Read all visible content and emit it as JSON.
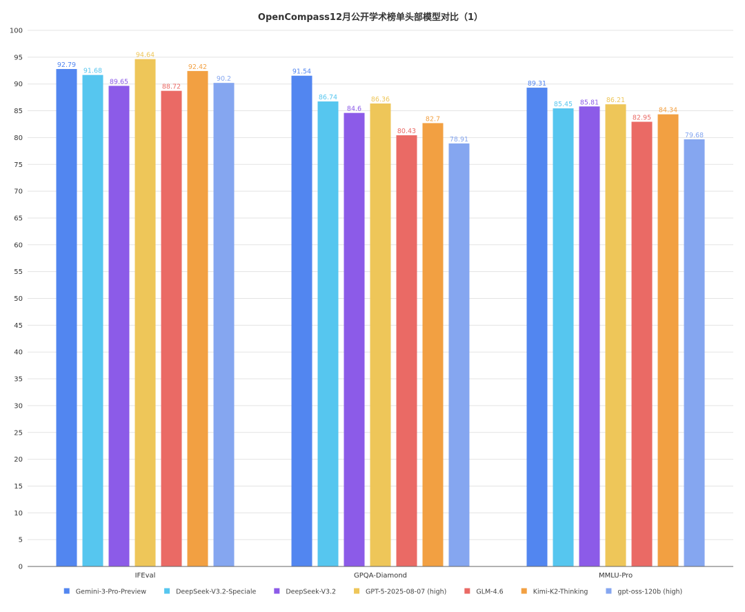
{
  "chart_data": {
    "type": "bar",
    "title": "OpenCompass12月公开学术榜单头部模型对比（1）",
    "xlabel": "",
    "ylabel": "",
    "ylim": [
      0,
      100
    ],
    "ytick_step": 5,
    "y_ticks": [
      "0",
      "5",
      "10",
      "15",
      "20",
      "25",
      "30",
      "35",
      "40",
      "45",
      "50",
      "55",
      "60",
      "65",
      "70",
      "75",
      "80",
      "85",
      "90",
      "95",
      "100"
    ],
    "grid": true,
    "legend_position": "bottom",
    "categories": [
      "IFEval",
      "GPQA-Diamond",
      "MMLU-Pro"
    ],
    "series": [
      {
        "name": "Gemini-3-Pro-Preview",
        "color": "#5286f0",
        "values": [
          92.79,
          91.54,
          89.31
        ],
        "labels": [
          "92.79",
          "91.54",
          "89.31"
        ]
      },
      {
        "name": "DeepSeek-V3.2-Speciale",
        "color": "#56c6ef",
        "values": [
          91.68,
          86.74,
          85.45
        ],
        "labels": [
          "91.68",
          "86.74",
          "85.45"
        ]
      },
      {
        "name": "DeepSeek-V3.2",
        "color": "#8c5be8",
        "values": [
          89.65,
          84.6,
          85.81
        ],
        "labels": [
          "89.65",
          "84.6",
          "85.81"
        ]
      },
      {
        "name": "GPT-5-2025-08-07 (high)",
        "color": "#eec659",
        "values": [
          94.64,
          86.36,
          86.21
        ],
        "labels": [
          "94.64",
          "86.36",
          "86.21"
        ]
      },
      {
        "name": "GLM-4.6",
        "color": "#ea6a65",
        "values": [
          88.72,
          80.43,
          82.95
        ],
        "labels": [
          "88.72",
          "80.43",
          "82.95"
        ]
      },
      {
        "name": "Kimi-K2-Thinking",
        "color": "#f2a042",
        "values": [
          92.42,
          82.7,
          84.34
        ],
        "labels": [
          "92.42",
          "82.7",
          "84.34"
        ]
      },
      {
        "name": "gpt-oss-120b (high)",
        "color": "#85a6f0",
        "values": [
          90.2,
          78.91,
          79.68
        ],
        "labels": [
          "90.2",
          "78.91",
          "79.68"
        ]
      }
    ]
  }
}
